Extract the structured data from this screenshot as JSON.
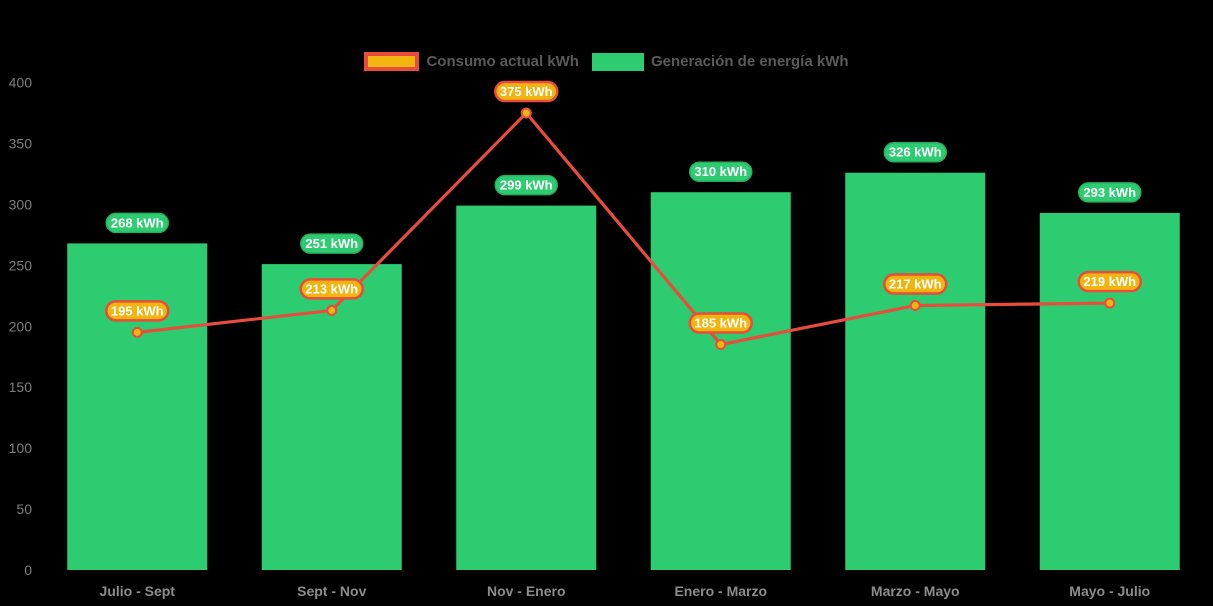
{
  "app": {
    "background_color": "#000000"
  },
  "legend": {
    "items": [
      {
        "label": "Consumo actual kWh",
        "series": "line",
        "fill": "#f2b40e",
        "border": "#e74c3c"
      },
      {
        "label": "Generación de energía kWh",
        "series": "bar",
        "fill": "#2ecc71",
        "border": "#2ecc71"
      }
    ],
    "text_color": "#595a5c"
  },
  "chart_data": {
    "type": "bar+line combo",
    "title": "",
    "xlabel": "",
    "ylabel": "",
    "categories": [
      "Julio - Sept",
      "Sept - Nov",
      "Nov - Enero",
      "Enero - Marzo",
      "Marzo - Mayo",
      "Mayo - Julio"
    ],
    "series": [
      {
        "name": "Generación de energía kWh",
        "type": "bar",
        "color": "#2ecc71",
        "values": [
          268,
          251,
          299,
          310,
          326,
          293
        ],
        "data_labels": [
          "268 kWh",
          "251 kWh",
          "299 kWh",
          "310 kWh",
          "326 kWh",
          "293 kWh"
        ],
        "label_style": {
          "fill": "#2ecc71",
          "border": "#27ae60",
          "text": "#ffffff"
        }
      },
      {
        "name": "Consumo actual kWh",
        "type": "line",
        "color": "#e74c3c",
        "point_fill": "#f2b40e",
        "values": [
          195,
          213,
          375,
          185,
          217,
          219
        ],
        "data_labels": [
          "195 kWh",
          "213 kWh",
          "375 kWh",
          "185 kWh",
          "217 kWh",
          "219 kWh"
        ],
        "label_style": {
          "fill": "#f2b40e",
          "border": "#e74c3c",
          "text": "#ffffff"
        }
      }
    ],
    "yaxis": {
      "range": [
        0,
        400
      ],
      "ticks": [
        0,
        50,
        100,
        150,
        200,
        250,
        300,
        350,
        400
      ],
      "tick_color": "#7d7d7d"
    },
    "xaxis": {
      "tick_color": "#8c8c8c"
    },
    "grid": false,
    "axis_lines": false,
    "legend_position": "top-center",
    "background": "#000000"
  }
}
